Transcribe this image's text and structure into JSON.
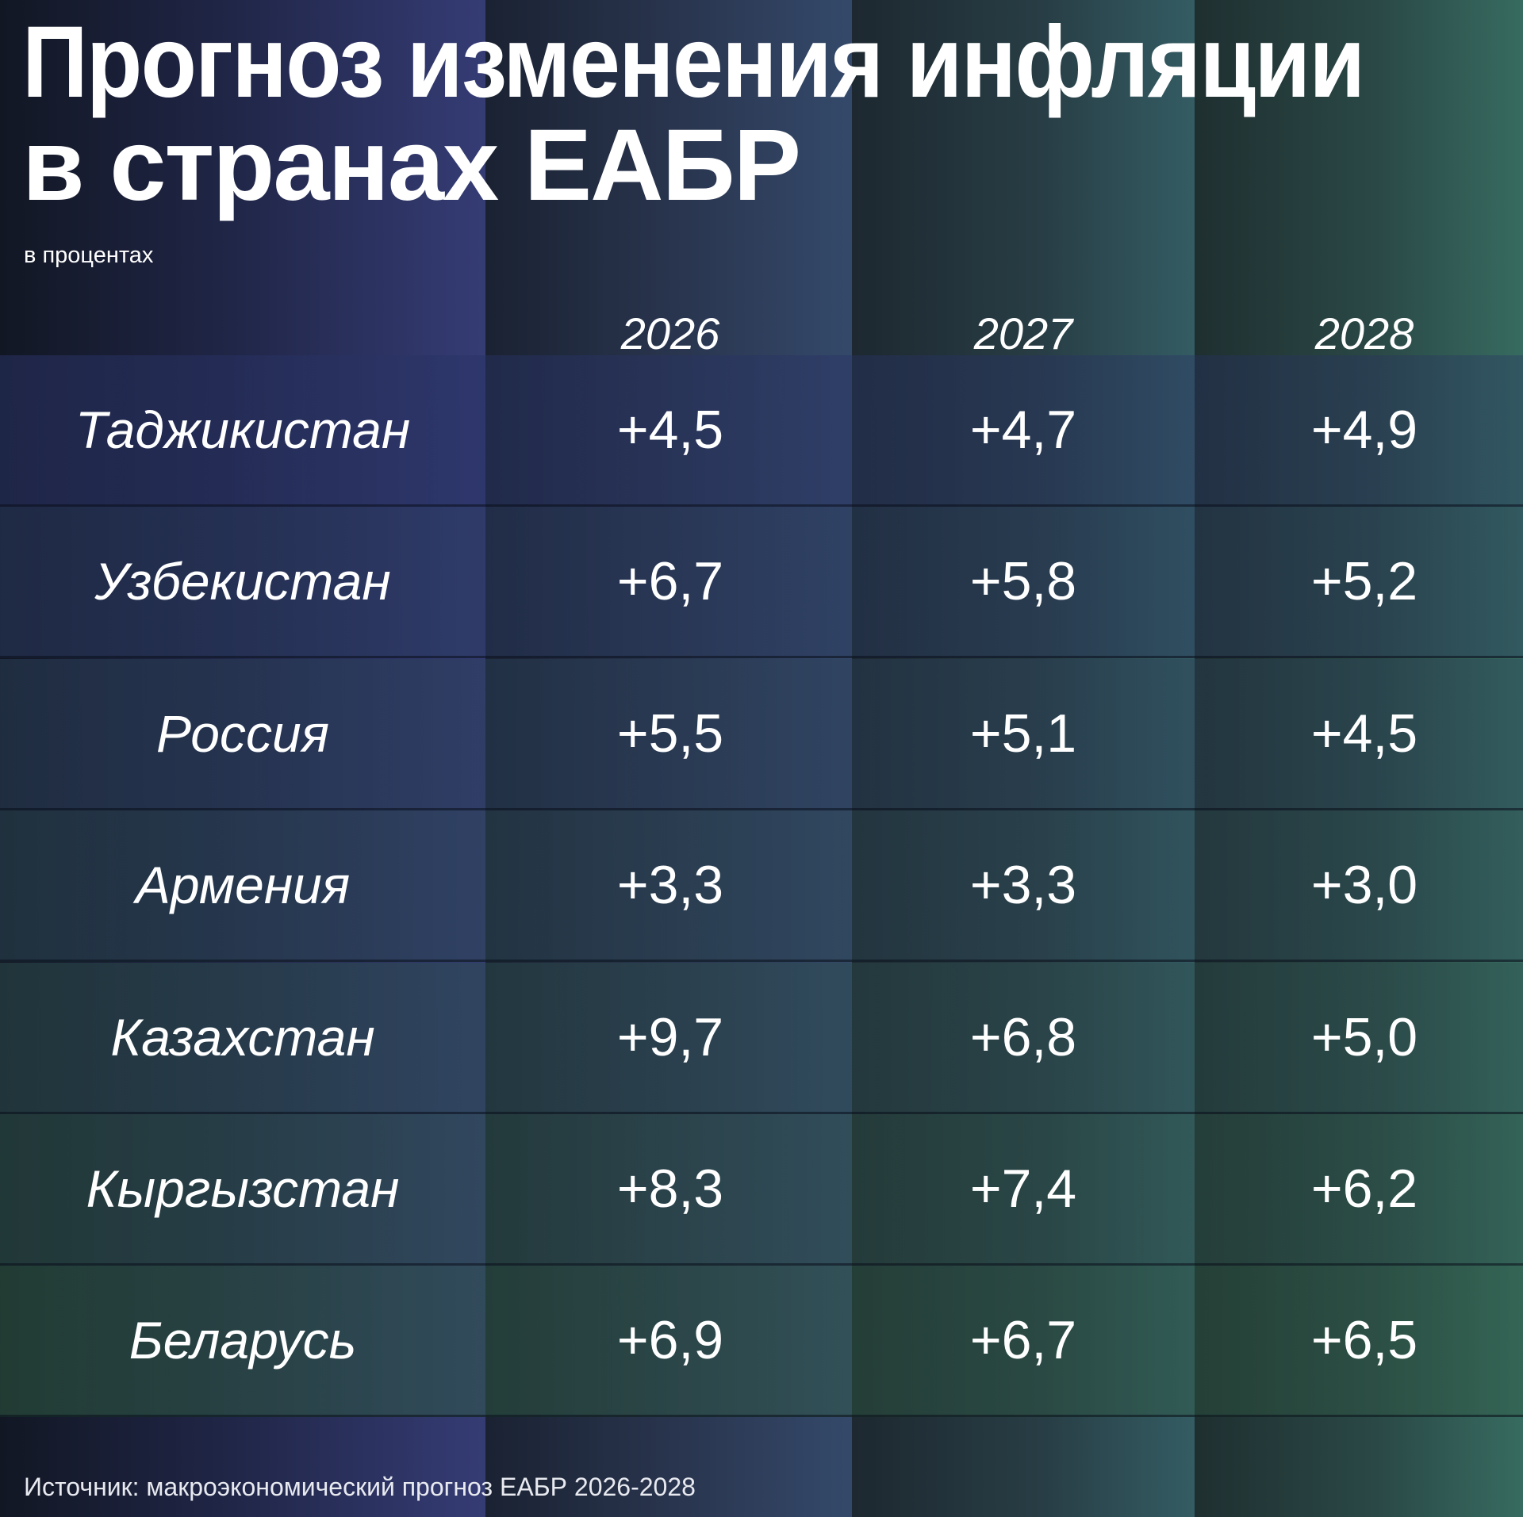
{
  "title_line1": "Прогноз изменения инфляции",
  "title_line2": "в странах ЕАБР",
  "subtitle": "в процентах",
  "footer": "Источник: макроэкономический прогноз ЕАБР 2026-2028",
  "chart_data": {
    "type": "table",
    "title": "Прогноз изменения инфляции в странах ЕАБР",
    "unit": "в процентах",
    "columns": [
      "2026",
      "2027",
      "2028"
    ],
    "rows": [
      {
        "country": "Таджикистан",
        "values": [
          "+4,5",
          "+4,7",
          "+4,9"
        ]
      },
      {
        "country": "Узбекистан",
        "values": [
          "+6,7",
          "+5,8",
          "+5,2"
        ]
      },
      {
        "country": "Россия",
        "values": [
          "+5,5",
          "+5,1",
          "+4,5"
        ]
      },
      {
        "country": "Армения",
        "values": [
          "+3,3",
          "+3,3",
          "+3,0"
        ]
      },
      {
        "country": "Казахстан",
        "values": [
          "+9,7",
          "+6,8",
          "+5,0"
        ]
      },
      {
        "country": "Кыргызстан",
        "values": [
          "+8,3",
          "+7,4",
          "+6,2"
        ]
      },
      {
        "country": "Беларусь",
        "values": [
          "+6,9",
          "+6,7",
          "+6,5"
        ]
      }
    ]
  }
}
